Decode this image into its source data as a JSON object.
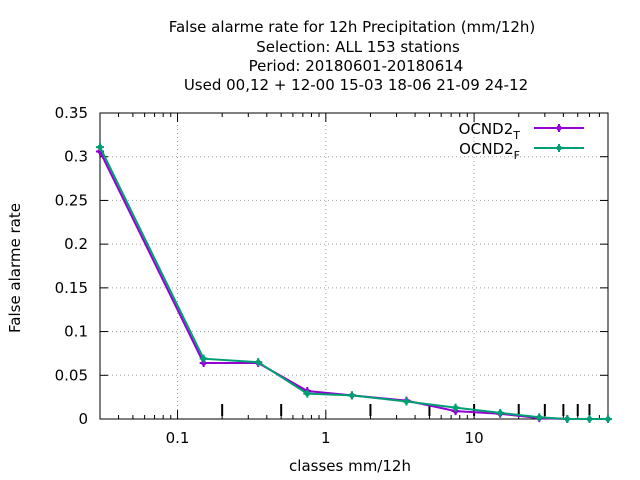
{
  "title_lines": [
    "False alarme rate  for 12h Precipitation (mm/12h)",
    "Selection: ALL    153 stations",
    "Period: 20180601-20180614",
    "Used  00,12  + 12-00 15-03 18-06 21-09 24-12"
  ],
  "xlabel": "classes mm/12h",
  "ylabel": "False alarme rate",
  "chart_data": {
    "type": "line",
    "title": "False alarme rate  for 12h Precipitation (mm/12h)",
    "xscale": "log",
    "xlim": [
      0.03,
      80
    ],
    "ylim": [
      0,
      0.35
    ],
    "grid": true,
    "legend_position": "top-right",
    "x_ticks": [
      {
        "value": 0.1,
        "label": "0.1"
      },
      {
        "value": 1,
        "label": "1"
      },
      {
        "value": 10,
        "label": "10"
      }
    ],
    "y_ticks": [
      {
        "value": 0,
        "label": "0"
      },
      {
        "value": 0.05,
        "label": "0.05"
      },
      {
        "value": 0.1,
        "label": "0.1"
      },
      {
        "value": 0.15,
        "label": "0.15"
      },
      {
        "value": 0.2,
        "label": "0.2"
      },
      {
        "value": 0.25,
        "label": "0.25"
      },
      {
        "value": 0.3,
        "label": "0.3"
      },
      {
        "value": 0.35,
        "label": "0.35"
      }
    ],
    "class_marks": [
      0.2,
      0.5,
      2,
      5,
      10,
      20,
      30,
      40,
      50,
      60
    ],
    "x": [
      0.03,
      0.15,
      0.35,
      0.75,
      1.5,
      3.5,
      7.5,
      15,
      27.5,
      42.5,
      60,
      80
    ],
    "series": [
      {
        "name": "OCND2",
        "subscript": "T",
        "color": "#9400d3",
        "values": [
          0.306,
          0.064,
          0.064,
          0.032,
          0.027,
          0.021,
          0.009,
          0.006,
          0.001,
          0.0,
          0.0,
          0.0
        ]
      },
      {
        "name": "OCND2",
        "subscript": "F",
        "color": "#009e73",
        "values": [
          0.311,
          0.069,
          0.065,
          0.029,
          0.027,
          0.02,
          0.013,
          0.007,
          0.002,
          0.0,
          0.0,
          0.0
        ]
      }
    ]
  }
}
